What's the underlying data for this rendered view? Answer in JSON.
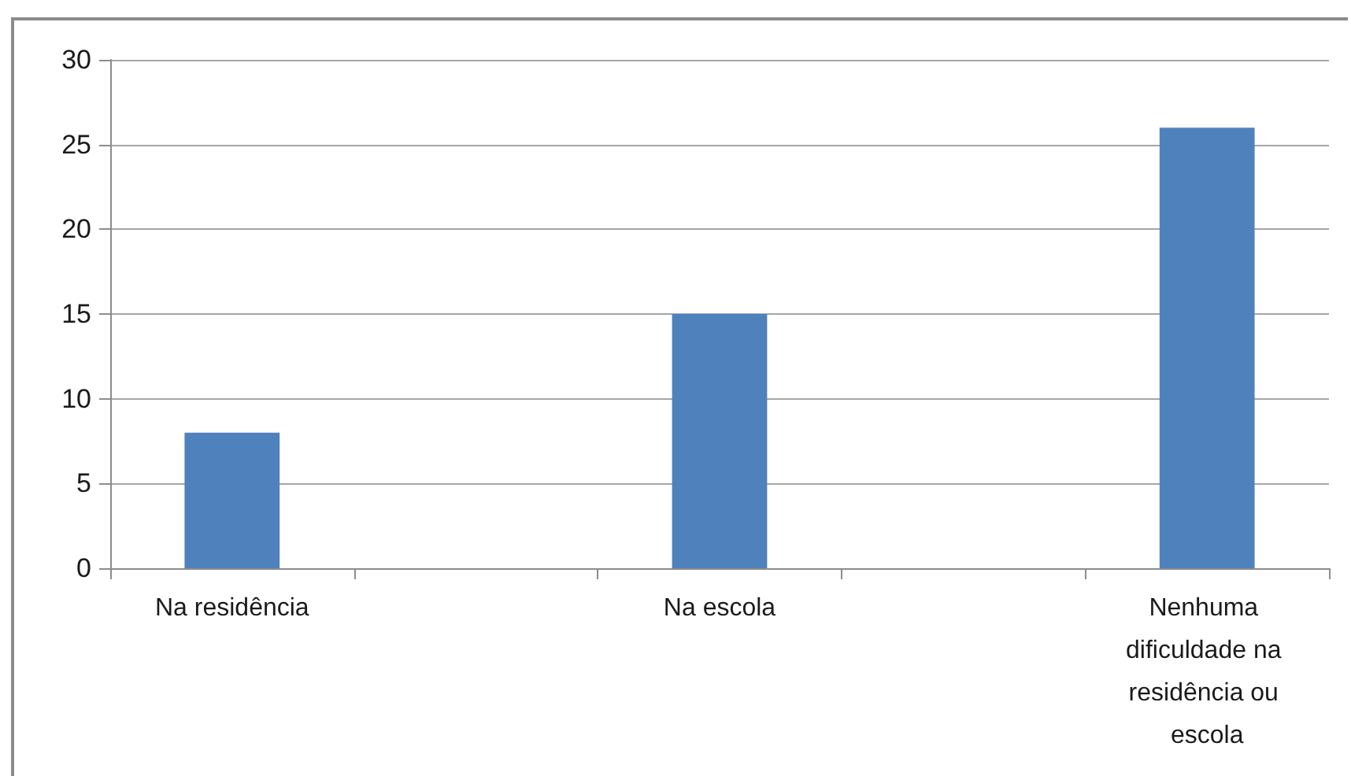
{
  "chart_data": {
    "type": "bar",
    "categories": [
      "Na residência",
      null,
      "Na escola",
      null,
      "Nenhuma dificuldade na residência ou escola"
    ],
    "values": [
      8,
      null,
      15,
      null,
      26
    ],
    "color": "#4f81bd",
    "ylim": [
      0,
      30
    ],
    "yticks": [
      0,
      5,
      10,
      15,
      20,
      25,
      30
    ],
    "grid": "y"
  }
}
